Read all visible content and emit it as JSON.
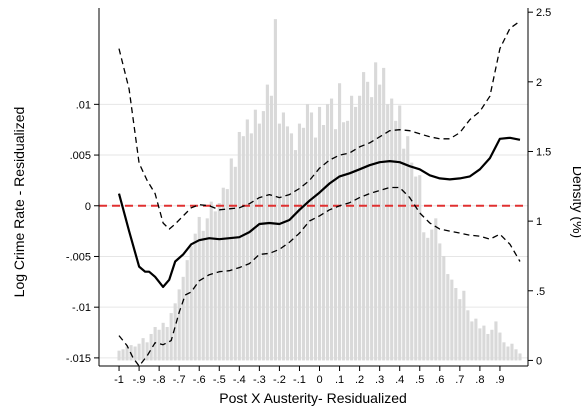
{
  "chart_data": {
    "type": "line",
    "title": "",
    "xlabel": "Post X Austerity- Residualized",
    "ylabel": "Log Crime Rate - Residualized",
    "y2label": "Density (%)",
    "xlim": [
      -1.1,
      1.04
    ],
    "ylim": [
      -0.0158,
      0.0195
    ],
    "y2lim": [
      -0.04,
      2.53
    ],
    "x_ticks": [
      {
        "v": -1.0,
        "label": "-1"
      },
      {
        "v": -0.9,
        "label": "-.9"
      },
      {
        "v": -0.8,
        "label": "-.8"
      },
      {
        "v": -0.7,
        "label": "-.7"
      },
      {
        "v": -0.6,
        "label": "-.6"
      },
      {
        "v": -0.5,
        "label": "-.5"
      },
      {
        "v": -0.4,
        "label": "-.4"
      },
      {
        "v": -0.3,
        "label": "-.3"
      },
      {
        "v": -0.2,
        "label": "-.2"
      },
      {
        "v": -0.1,
        "label": "-.1"
      },
      {
        "v": 0.0,
        "label": "0"
      },
      {
        "v": 0.1,
        "label": ".1"
      },
      {
        "v": 0.2,
        "label": ".2"
      },
      {
        "v": 0.3,
        "label": ".3"
      },
      {
        "v": 0.4,
        "label": ".4"
      },
      {
        "v": 0.5,
        "label": ".5"
      },
      {
        "v": 0.6,
        "label": ".6"
      },
      {
        "v": 0.7,
        "label": ".7"
      },
      {
        "v": 0.8,
        "label": ".8"
      },
      {
        "v": 0.9,
        "label": ".9"
      }
    ],
    "y_ticks": [
      {
        "v": -0.015,
        "label": "-.015"
      },
      {
        "v": -0.01,
        "label": "-.01"
      },
      {
        "v": -0.005,
        "label": "-.005"
      },
      {
        "v": 0.0,
        "label": "0"
      },
      {
        "v": 0.005,
        "label": ".005"
      },
      {
        "v": 0.01,
        "label": ".01"
      }
    ],
    "y2_ticks": [
      {
        "v": 0,
        "label": "0"
      },
      {
        "v": 0.5,
        "label": ".5"
      },
      {
        "v": 1,
        "label": "1"
      },
      {
        "v": 1.5,
        "label": "1.5"
      },
      {
        "v": 2,
        "label": "2"
      },
      {
        "v": 2.5,
        "label": "2.5"
      }
    ],
    "grid": true,
    "reference_line": {
      "y": 0,
      "color": "#e03030",
      "style": "dashed"
    },
    "histogram": {
      "axis": "right",
      "color": "#d9d9d9",
      "bin_width": 0.02,
      "x": [
        -1.0,
        -0.98,
        -0.96,
        -0.94,
        -0.92,
        -0.9,
        -0.88,
        -0.86,
        -0.84,
        -0.82,
        -0.8,
        -0.78,
        -0.76,
        -0.74,
        -0.72,
        -0.7,
        -0.68,
        -0.66,
        -0.64,
        -0.62,
        -0.6,
        -0.58,
        -0.56,
        -0.54,
        -0.52,
        -0.5,
        -0.48,
        -0.46,
        -0.44,
        -0.42,
        -0.4,
        -0.38,
        -0.36,
        -0.34,
        -0.32,
        -0.3,
        -0.28,
        -0.26,
        -0.24,
        -0.22,
        -0.2,
        -0.18,
        -0.16,
        -0.14,
        -0.12,
        -0.1,
        -0.08,
        -0.06,
        -0.04,
        -0.02,
        0.0,
        0.02,
        0.04,
        0.06,
        0.08,
        0.1,
        0.12,
        0.14,
        0.16,
        0.18,
        0.2,
        0.22,
        0.24,
        0.26,
        0.28,
        0.3,
        0.32,
        0.34,
        0.36,
        0.38,
        0.4,
        0.42,
        0.44,
        0.46,
        0.48,
        0.5,
        0.52,
        0.54,
        0.56,
        0.58,
        0.6,
        0.62,
        0.64,
        0.66,
        0.68,
        0.7,
        0.72,
        0.74,
        0.76,
        0.78,
        0.8,
        0.82,
        0.84,
        0.86,
        0.88,
        0.9,
        0.92,
        0.94,
        0.96,
        0.98,
        1.0
      ],
      "density": [
        0.07,
        0.08,
        0.1,
        0.11,
        0.1,
        0.12,
        0.16,
        0.13,
        0.19,
        0.24,
        0.22,
        0.27,
        0.24,
        0.34,
        0.41,
        0.51,
        0.6,
        0.72,
        0.82,
        0.91,
        1.03,
        0.93,
        1.02,
        1.14,
        1.07,
        1.13,
        1.24,
        1.23,
        1.45,
        1.39,
        1.64,
        1.61,
        1.73,
        1.63,
        1.8,
        1.7,
        1.79,
        1.98,
        1.9,
        2.45,
        1.7,
        1.78,
        1.68,
        1.63,
        1.51,
        1.7,
        1.67,
        1.84,
        1.78,
        1.6,
        1.82,
        1.69,
        1.84,
        1.88,
        1.66,
        1.99,
        1.71,
        1.72,
        1.9,
        1.82,
        1.9,
        2.07,
        2.0,
        1.89,
        2.14,
        1.98,
        2.1,
        1.84,
        1.88,
        1.72,
        1.83,
        1.52,
        1.61,
        1.42,
        1.32,
        1.33,
        0.92,
        0.88,
        0.94,
        1.02,
        0.84,
        0.75,
        0.62,
        0.58,
        0.52,
        0.44,
        0.5,
        0.36,
        0.28,
        0.3,
        0.23,
        0.25,
        0.19,
        0.22,
        0.28,
        0.2,
        0.13,
        0.1,
        0.12,
        0.08,
        0.05
      ]
    },
    "series": [
      {
        "style": "solid",
        "color": "#000000",
        "x": [
          -1.0,
          -0.95,
          -0.9,
          -0.87,
          -0.85,
          -0.82,
          -0.78,
          -0.75,
          -0.72,
          -0.68,
          -0.64,
          -0.6,
          -0.55,
          -0.5,
          -0.45,
          -0.4,
          -0.35,
          -0.3,
          -0.25,
          -0.2,
          -0.15,
          -0.1,
          -0.05,
          0.0,
          0.05,
          0.1,
          0.15,
          0.2,
          0.25,
          0.3,
          0.35,
          0.4,
          0.45,
          0.5,
          0.55,
          0.6,
          0.65,
          0.7,
          0.75,
          0.8,
          0.85,
          0.9,
          0.95,
          1.0
        ],
        "y": [
          0.0012,
          -0.0025,
          -0.006,
          -0.0065,
          -0.0065,
          -0.007,
          -0.008,
          -0.0073,
          -0.0055,
          -0.0048,
          -0.0038,
          -0.0034,
          -0.0032,
          -0.0033,
          -0.0032,
          -0.0031,
          -0.0026,
          -0.0018,
          -0.0017,
          -0.0018,
          -0.0014,
          -0.0004,
          0.0005,
          0.0013,
          0.0022,
          0.0029,
          0.0032,
          0.0036,
          0.004,
          0.0043,
          0.0044,
          0.0043,
          0.0039,
          0.0036,
          0.003,
          0.0027,
          0.0026,
          0.0027,
          0.0029,
          0.0036,
          0.0047,
          0.0066,
          0.0067,
          0.0065
        ]
      },
      {
        "style": "dashed",
        "color": "#000000",
        "x": [
          -1.0,
          -0.95,
          -0.9,
          -0.86,
          -0.82,
          -0.78,
          -0.75,
          -0.72,
          -0.68,
          -0.64,
          -0.6,
          -0.55,
          -0.5,
          -0.45,
          -0.4,
          -0.35,
          -0.3,
          -0.25,
          -0.2,
          -0.15,
          -0.1,
          -0.05,
          0.0,
          0.05,
          0.1,
          0.15,
          0.2,
          0.25,
          0.3,
          0.35,
          0.4,
          0.45,
          0.5,
          0.55,
          0.6,
          0.65,
          0.7,
          0.75,
          0.8,
          0.85,
          0.9,
          0.95,
          1.0
        ],
        "y": [
          0.0155,
          0.0115,
          0.0042,
          0.0025,
          0.0012,
          -0.0017,
          -0.0023,
          -0.0018,
          -0.001,
          -0.0002,
          0.0001,
          0.0,
          -0.0004,
          -0.0003,
          -0.0002,
          0.0002,
          0.0008,
          0.0011,
          0.0008,
          0.0011,
          0.0017,
          0.0025,
          0.0037,
          0.0045,
          0.005,
          0.0052,
          0.0058,
          0.0062,
          0.0068,
          0.0074,
          0.0075,
          0.0074,
          0.0071,
          0.0068,
          0.0066,
          0.0066,
          0.0072,
          0.0085,
          0.0093,
          0.0108,
          0.0155,
          0.0175,
          0.0182
        ]
      },
      {
        "style": "dashed",
        "color": "#000000",
        "x": [
          -1.0,
          -0.96,
          -0.93,
          -0.9,
          -0.86,
          -0.82,
          -0.78,
          -0.74,
          -0.7,
          -0.67,
          -0.64,
          -0.6,
          -0.55,
          -0.5,
          -0.45,
          -0.4,
          -0.35,
          -0.3,
          -0.25,
          -0.2,
          -0.15,
          -0.1,
          -0.05,
          0.0,
          0.05,
          0.1,
          0.15,
          0.2,
          0.25,
          0.3,
          0.35,
          0.4,
          0.45,
          0.5,
          0.55,
          0.6,
          0.65,
          0.7,
          0.75,
          0.8,
          0.85,
          0.9,
          0.95,
          1.0
        ],
        "y": [
          -0.0128,
          -0.0138,
          -0.015,
          -0.0158,
          -0.0148,
          -0.0135,
          -0.0137,
          -0.0133,
          -0.0105,
          -0.0088,
          -0.0085,
          -0.0074,
          -0.0068,
          -0.0065,
          -0.0064,
          -0.0061,
          -0.0057,
          -0.0048,
          -0.0047,
          -0.0043,
          -0.0036,
          -0.0027,
          -0.0015,
          -0.001,
          -0.0004,
          0.0,
          0.0003,
          0.0008,
          0.0012,
          0.0015,
          0.0018,
          0.0018,
          0.0008,
          -0.0007,
          -0.0017,
          -0.0023,
          -0.0025,
          -0.0027,
          -0.0029,
          -0.003,
          -0.0033,
          -0.0028,
          -0.0038,
          -0.0055
        ]
      }
    ]
  }
}
